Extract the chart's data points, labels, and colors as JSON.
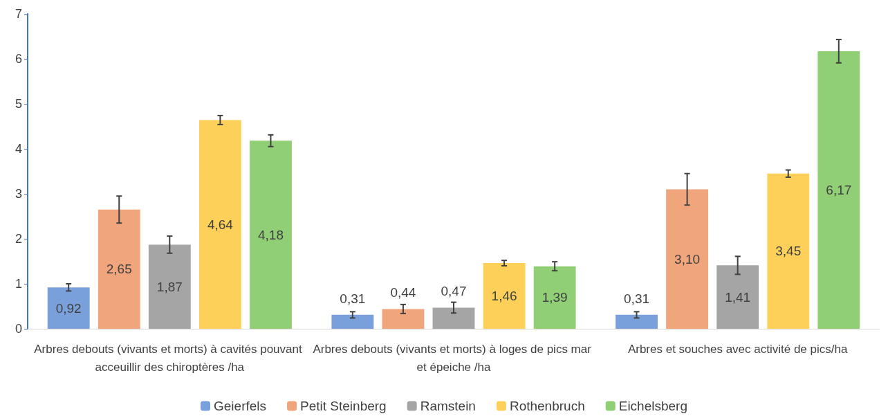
{
  "chart_data": {
    "type": "bar",
    "categories": [
      "Arbres debouts (vivants et morts) à cavités pouvant acceuillir des chiroptères /ha",
      "Arbres debouts (vivants et morts) à loges de pics mar et épeiche /ha",
      "Arbres et souches avec activité de pics/ha"
    ],
    "series": [
      {
        "name": "Geierfels",
        "color": "#7aa0dc",
        "values": [
          0.92,
          0.31,
          0.31
        ],
        "errors": [
          0.08,
          0.07,
          0.07
        ],
        "value_labels": [
          "0,92",
          "0,31",
          "0,31"
        ]
      },
      {
        "name": "Petit Steinberg",
        "color": "#f0a57c",
        "values": [
          2.65,
          0.44,
          3.1
        ],
        "errors": [
          0.3,
          0.1,
          0.35
        ],
        "value_labels": [
          "2,65",
          "0,44",
          "3,10"
        ]
      },
      {
        "name": "Ramstein",
        "color": "#a5a5a5",
        "values": [
          1.87,
          0.47,
          1.41
        ],
        "errors": [
          0.19,
          0.12,
          0.2
        ],
        "value_labels": [
          "1,87",
          "0,47",
          "1,41"
        ]
      },
      {
        "name": "Rothenbruch",
        "color": "#fdd159",
        "values": [
          4.64,
          1.46,
          3.45
        ],
        "errors": [
          0.1,
          0.06,
          0.08
        ],
        "value_labels": [
          "4,64",
          "1,46",
          "3,45"
        ]
      },
      {
        "name": "Eichelsberg",
        "color": "#90cf76",
        "values": [
          4.18,
          1.39,
          6.17
        ],
        "errors": [
          0.13,
          0.1,
          0.26
        ],
        "value_labels": [
          "4,18",
          "1,39",
          "6,17"
        ]
      }
    ],
    "ylim": [
      0,
      7
    ],
    "yticks": [
      0,
      1,
      2,
      3,
      4,
      5,
      6,
      7
    ],
    "grid": false,
    "legend": "bottom"
  }
}
